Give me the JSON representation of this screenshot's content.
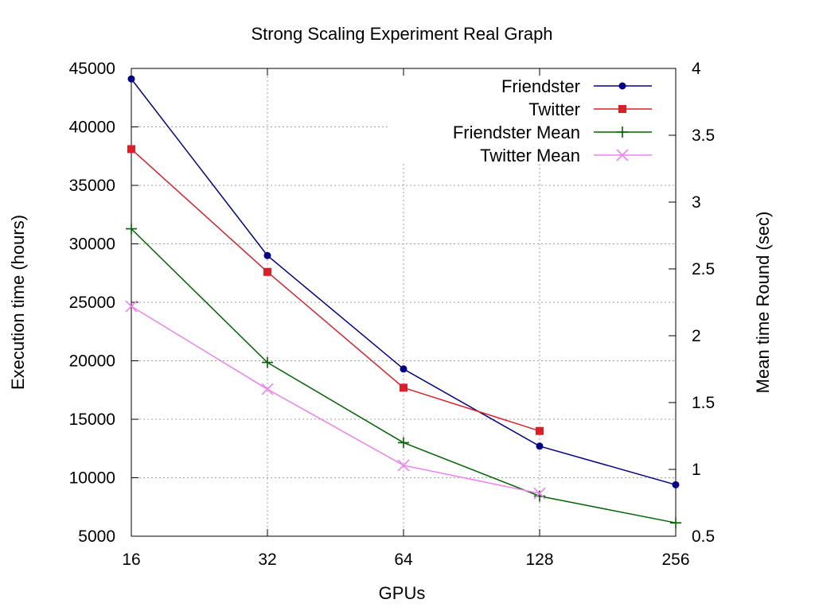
{
  "chart_data": {
    "type": "line",
    "title": "Strong Scaling Experiment Real Graph",
    "xlabel": "GPUs",
    "ylabel": "Execution time (hours)",
    "y2label": "Mean time Round (sec)",
    "x_scale": "log2",
    "x": [
      16,
      32,
      64,
      128,
      256
    ],
    "x_tick_labels": [
      "16",
      "32",
      "64",
      "128",
      "256"
    ],
    "ylim": [
      5000,
      45000
    ],
    "y_ticks": [
      5000,
      10000,
      15000,
      20000,
      25000,
      30000,
      35000,
      40000,
      45000
    ],
    "y_tick_labels": [
      "5000",
      "10000",
      "15000",
      "20000",
      "25000",
      "30000",
      "35000",
      "40000",
      "45000"
    ],
    "y2lim": [
      0.5,
      4
    ],
    "y2_ticks": [
      0.5,
      1,
      1.5,
      2,
      2.5,
      3,
      3.5,
      4
    ],
    "y2_tick_labels": [
      "0.5",
      "1",
      "1.5",
      "2",
      "2.5",
      "3",
      "3.5",
      "4"
    ],
    "grid": true,
    "legend_position": "top-right",
    "series": [
      {
        "name": "Friendster",
        "axis": "y",
        "color": "#00008b",
        "marker": "circle",
        "x": [
          16,
          32,
          64,
          128,
          256
        ],
        "values": [
          44100,
          29000,
          19300,
          12700,
          9400
        ]
      },
      {
        "name": "Twitter",
        "axis": "y",
        "color": "#dc1e28",
        "marker": "square",
        "x": [
          16,
          32,
          64,
          128
        ],
        "values": [
          38100,
          27600,
          17700,
          14000
        ]
      },
      {
        "name": "Friendster Mean",
        "axis": "y2",
        "color": "#006400",
        "marker": "plus",
        "x": [
          16,
          32,
          64,
          128,
          256
        ],
        "values": [
          2.8,
          1.8,
          1.2,
          0.8,
          0.6
        ]
      },
      {
        "name": "Twitter Mean",
        "axis": "y2",
        "color": "#ee82ee",
        "marker": "cross",
        "x": [
          16,
          32,
          64,
          128
        ],
        "values": [
          2.22,
          1.6,
          1.03,
          0.82
        ]
      }
    ]
  }
}
